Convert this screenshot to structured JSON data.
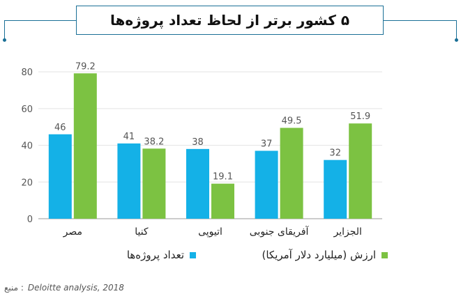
{
  "title": "۵ کشور برتر از لحاظ تعداد پروژه‌ها",
  "legend": {
    "projects_label": "تعداد پروژه‌ها",
    "value_label": "ارزش (میلیارد دلار آمریکا)"
  },
  "source": {
    "label": "منبع :",
    "reference": "Deloitte analysis, 2018"
  },
  "colors": {
    "projects": "#14b1e7",
    "value": "#7cc242",
    "frame": "#1a6f96"
  },
  "chart_data": {
    "type": "bar",
    "categories": [
      "مصر",
      "کنیا",
      "اتیوپی",
      "آفریقای جنوبی",
      "الجزایر"
    ],
    "series": [
      {
        "name": "تعداد پروژه‌ها",
        "values": [
          46,
          41,
          38,
          37,
          32
        ]
      },
      {
        "name": "ارزش (میلیارد دلار آمریکا)",
        "values": [
          79.2,
          38.2,
          19.1,
          49.5,
          51.9
        ]
      }
    ],
    "yticks": [
      "0",
      "20",
      "40",
      "60",
      "80"
    ],
    "ylim": [
      0,
      85
    ],
    "grid": true,
    "legend_position": "bottom"
  }
}
